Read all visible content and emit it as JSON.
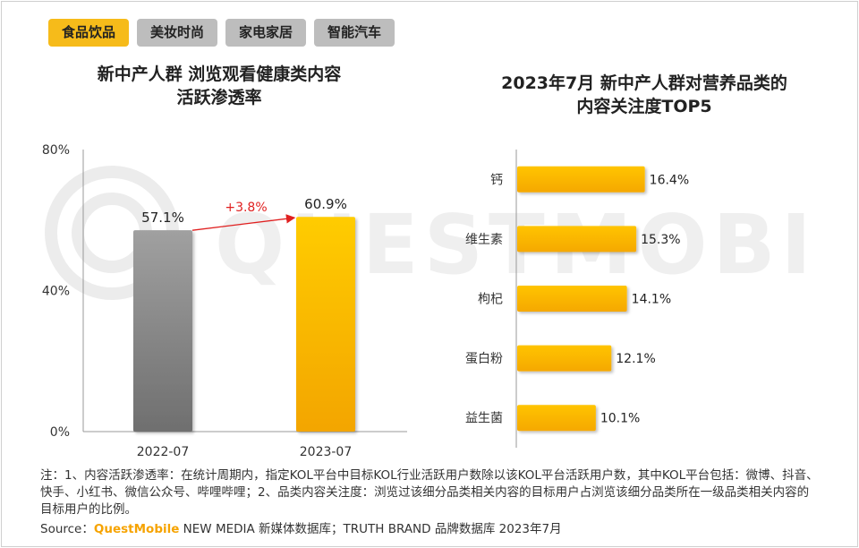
{
  "tabs": [
    {
      "label": "食品饮品",
      "active": true
    },
    {
      "label": "美妆时尚",
      "active": false
    },
    {
      "label": "家电家居",
      "active": false
    },
    {
      "label": "智能汽车",
      "active": false
    }
  ],
  "watermark": "QUESTMOBILE",
  "left_chart": {
    "title_line1": "新中产人群 浏览观看健康类内容",
    "title_line2": "活跃渗透率"
  },
  "right_chart": {
    "title_line1": "2023年7月 新中产人群对营养品类的",
    "title_line2": "内容关注度TOP5"
  },
  "chart_data": [
    {
      "type": "bar",
      "categories": [
        "2022-07",
        "2023-07"
      ],
      "values": [
        57.1,
        60.9
      ],
      "value_labels": [
        "57.1%",
        "60.9%"
      ],
      "ylim": [
        0,
        80
      ],
      "yticks": [
        "0%",
        "40%",
        "80%"
      ],
      "annotation": "+3.8%",
      "colors": {
        "bar1": "#8a8a8a",
        "bar2": "#f6b800",
        "arrow": "#e02020"
      }
    },
    {
      "type": "bar",
      "orientation": "horizontal",
      "categories": [
        "钙",
        "维生素",
        "枸杞",
        "蛋白粉",
        "益生菌"
      ],
      "values": [
        16.4,
        15.3,
        14.1,
        12.1,
        10.1
      ],
      "value_labels": [
        "16.4%",
        "15.3%",
        "14.1%",
        "12.1%",
        "10.1%"
      ],
      "colors": {
        "bar": "#f6b800"
      }
    }
  ],
  "notes": "注：1、内容活跃渗透率：在统计周期内，指定KOL平台中目标KOL行业活跃用户数除以该KOL平台活跃用户数，其中KOL平台包括：微博、抖音、快手、小红书、微信公众号、哔哩哔哩；2、品类内容关注度：浏览过该细分品类相关内容的目标用户占浏览该细分品类所在一级品类相关内容的目标用户的比例。",
  "source": {
    "prefix": "Source：",
    "brand": "QuestMobile",
    "suffix": " NEW MEDIA 新媒体数据库；TRUTH BRAND 品牌数据库 2023年7月"
  }
}
